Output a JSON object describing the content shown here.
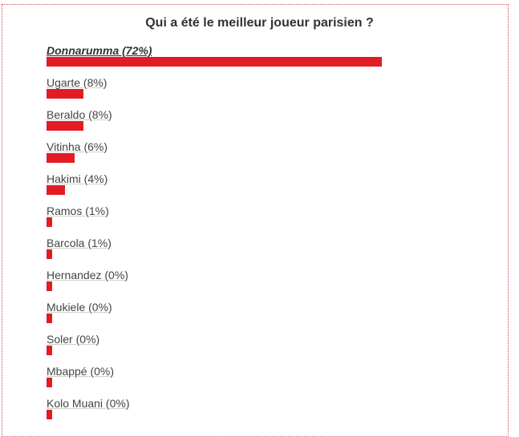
{
  "poll": {
    "title": "Qui a été le meilleur joueur parisien ?",
    "accent_color": "#e31b23",
    "options": [
      {
        "label": "Donnarumma (72%)",
        "percent": 72,
        "winner": true
      },
      {
        "label": "Ugarte (8%)",
        "percent": 8
      },
      {
        "label": "Beraldo (8%)",
        "percent": 8
      },
      {
        "label": "Vitinha (6%)",
        "percent": 6
      },
      {
        "label": "Hakimi (4%)",
        "percent": 4
      },
      {
        "label": "Ramos (1%)",
        "percent": 1
      },
      {
        "label": "Barcola (1%)",
        "percent": 1
      },
      {
        "label": "Hernandez (0%)",
        "percent": 0
      },
      {
        "label": "Mukiele (0%)",
        "percent": 0
      },
      {
        "label": "Soler (0%)",
        "percent": 0
      },
      {
        "label": "Mbappé (0%)",
        "percent": 0
      },
      {
        "label": "Kolo Muani (0%)",
        "percent": 0
      }
    ]
  }
}
